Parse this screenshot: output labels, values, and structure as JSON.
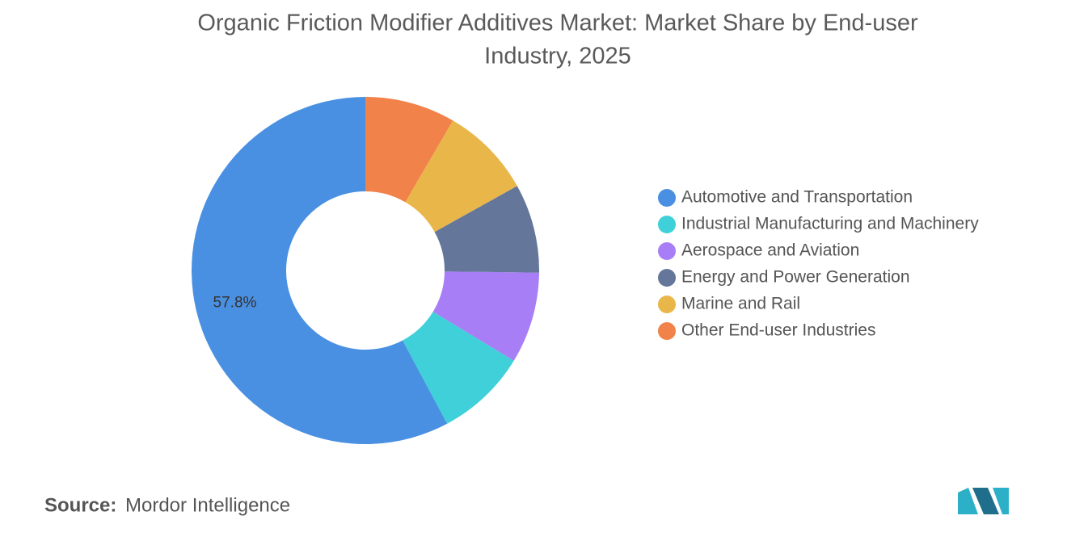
{
  "chart_data": {
    "type": "donut",
    "title": "Organic Friction Modifier Additives Market: Market Share by End-user Industry, 2025",
    "categories": [
      "Automotive and Transportation",
      "Industrial Manufacturing and Machinery",
      "Aerospace and Aviation",
      "Energy and Power Generation",
      "Marine and Rail",
      "Other End-user Industries"
    ],
    "values": [
      57.8,
      8.5,
      8.5,
      8.3,
      8.5,
      8.4
    ],
    "value_labels": [
      "57.8%",
      null,
      null,
      null,
      null,
      null
    ],
    "colors": [
      "#4a90e2",
      "#3fd0d9",
      "#a77ef5",
      "#64779a",
      "#e9b64a",
      "#f0824a"
    ],
    "legend": "right",
    "source": "Source:",
    "source_name": "Mordor Intelligence"
  }
}
